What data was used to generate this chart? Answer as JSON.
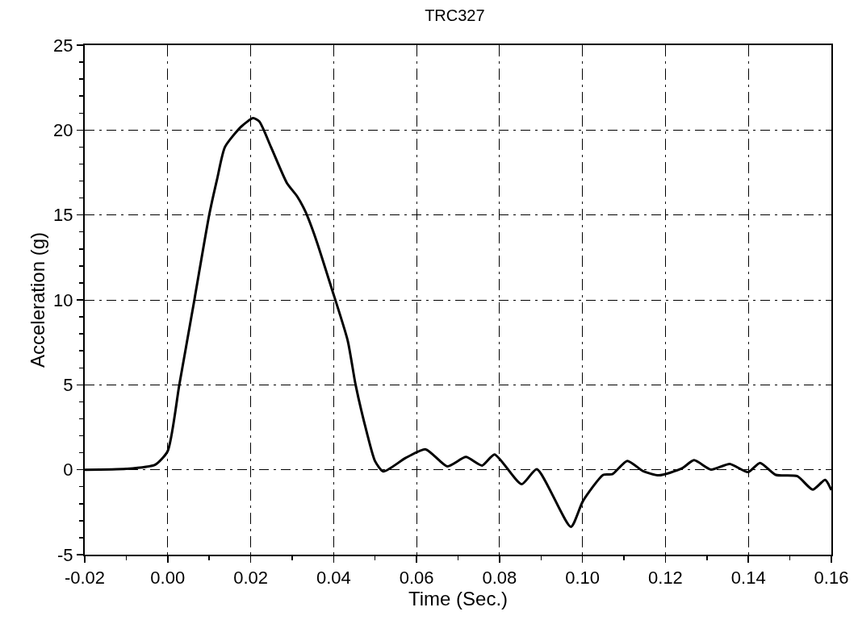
{
  "chart_data": {
    "type": "line",
    "title": "TRC327",
    "xlabel": "Time (Sec.)",
    "ylabel": "Acceleration (g)",
    "x": [
      -0.02,
      -0.01,
      -0.003,
      0.0,
      0.0028,
      0.0065,
      0.01,
      0.0119,
      0.0138,
      0.0177,
      0.0206,
      0.0221,
      0.0249,
      0.0287,
      0.0312,
      0.0332,
      0.0357,
      0.0395,
      0.0434,
      0.0453,
      0.048,
      0.05,
      0.052,
      0.0574,
      0.0622,
      0.0674,
      0.0719,
      0.0758,
      0.0788,
      0.0853,
      0.089,
      0.0972,
      0.1001,
      0.105,
      0.1072,
      0.1108,
      0.1146,
      0.1184,
      0.1239,
      0.1269,
      0.131,
      0.1355,
      0.1399,
      0.1428,
      0.1466,
      0.1518,
      0.1555,
      0.1585,
      0.16
    ],
    "series": [
      {
        "color": "#000000",
        "values": [
          0.0,
          0.05,
          0.3,
          1.1,
          5.0,
          10.1,
          15.0,
          17.1,
          19.0,
          20.2,
          20.7,
          20.5,
          19.0,
          16.9,
          16.1,
          15.2,
          13.6,
          10.7,
          7.6,
          5.0,
          2.2,
          0.5,
          -0.1,
          0.7,
          1.2,
          0.2,
          0.75,
          0.25,
          0.9,
          -0.85,
          0.03,
          -3.36,
          -1.85,
          -0.3,
          -0.26,
          0.52,
          -0.08,
          -0.33,
          0.07,
          0.56,
          0.01,
          0.34,
          -0.14,
          0.4,
          -0.3,
          -0.38,
          -1.17,
          -0.6,
          -1.2
        ]
      }
    ],
    "xlim": [
      -0.02,
      0.16
    ],
    "xticks": [
      {
        "value": -0.02,
        "label": "-0.02"
      },
      {
        "value": -0.01,
        "label": null
      },
      {
        "value": 0,
        "label": "0.00"
      },
      {
        "value": 0.01,
        "label": null
      },
      {
        "value": 0.02,
        "label": "0.02"
      },
      {
        "value": 0.03,
        "label": null
      },
      {
        "value": 0.04,
        "label": "0.04"
      },
      {
        "value": 0.05,
        "label": null
      },
      {
        "value": 0.06,
        "label": "0.06"
      },
      {
        "value": 0.07,
        "label": null
      },
      {
        "value": 0.08,
        "label": "0.08"
      },
      {
        "value": 0.09,
        "label": null
      },
      {
        "value": 0.1,
        "label": "0.10"
      },
      {
        "value": 0.11,
        "label": null
      },
      {
        "value": 0.12,
        "label": "0.12"
      },
      {
        "value": 0.13,
        "label": null
      },
      {
        "value": 0.14,
        "label": "0.14"
      },
      {
        "value": 0.15,
        "label": null
      },
      {
        "value": 0.16,
        "label": "0.16"
      }
    ],
    "ylim": [
      -5,
      25
    ],
    "yticks": [
      -5,
      {
        "value": -4,
        "label": null
      },
      {
        "value": -3,
        "label": null
      },
      {
        "value": -2,
        "label": null
      },
      {
        "value": -1,
        "label": null
      },
      0,
      {
        "value": 1,
        "label": null
      },
      {
        "value": 2,
        "label": null
      },
      {
        "value": 3,
        "label": null
      },
      {
        "value": 4,
        "label": null
      },
      5,
      {
        "value": 6,
        "label": null
      },
      {
        "value": 7,
        "label": null
      },
      {
        "value": 8,
        "label": null
      },
      {
        "value": 9,
        "label": null
      },
      10,
      {
        "value": 11,
        "label": null
      },
      {
        "value": 12,
        "label": null
      },
      {
        "value": 13,
        "label": null
      },
      {
        "value": 14,
        "label": null
      },
      15,
      {
        "value": 16,
        "label": null
      },
      {
        "value": 17,
        "label": null
      },
      {
        "value": 18,
        "label": null
      },
      {
        "value": 19,
        "label": null
      },
      20,
      {
        "value": 21,
        "label": null
      },
      {
        "value": 22,
        "label": null
      },
      {
        "value": 23,
        "label": null
      },
      {
        "value": 24,
        "label": null
      },
      25
    ],
    "grid": true,
    "line_style": "solid",
    "marker": "none"
  }
}
